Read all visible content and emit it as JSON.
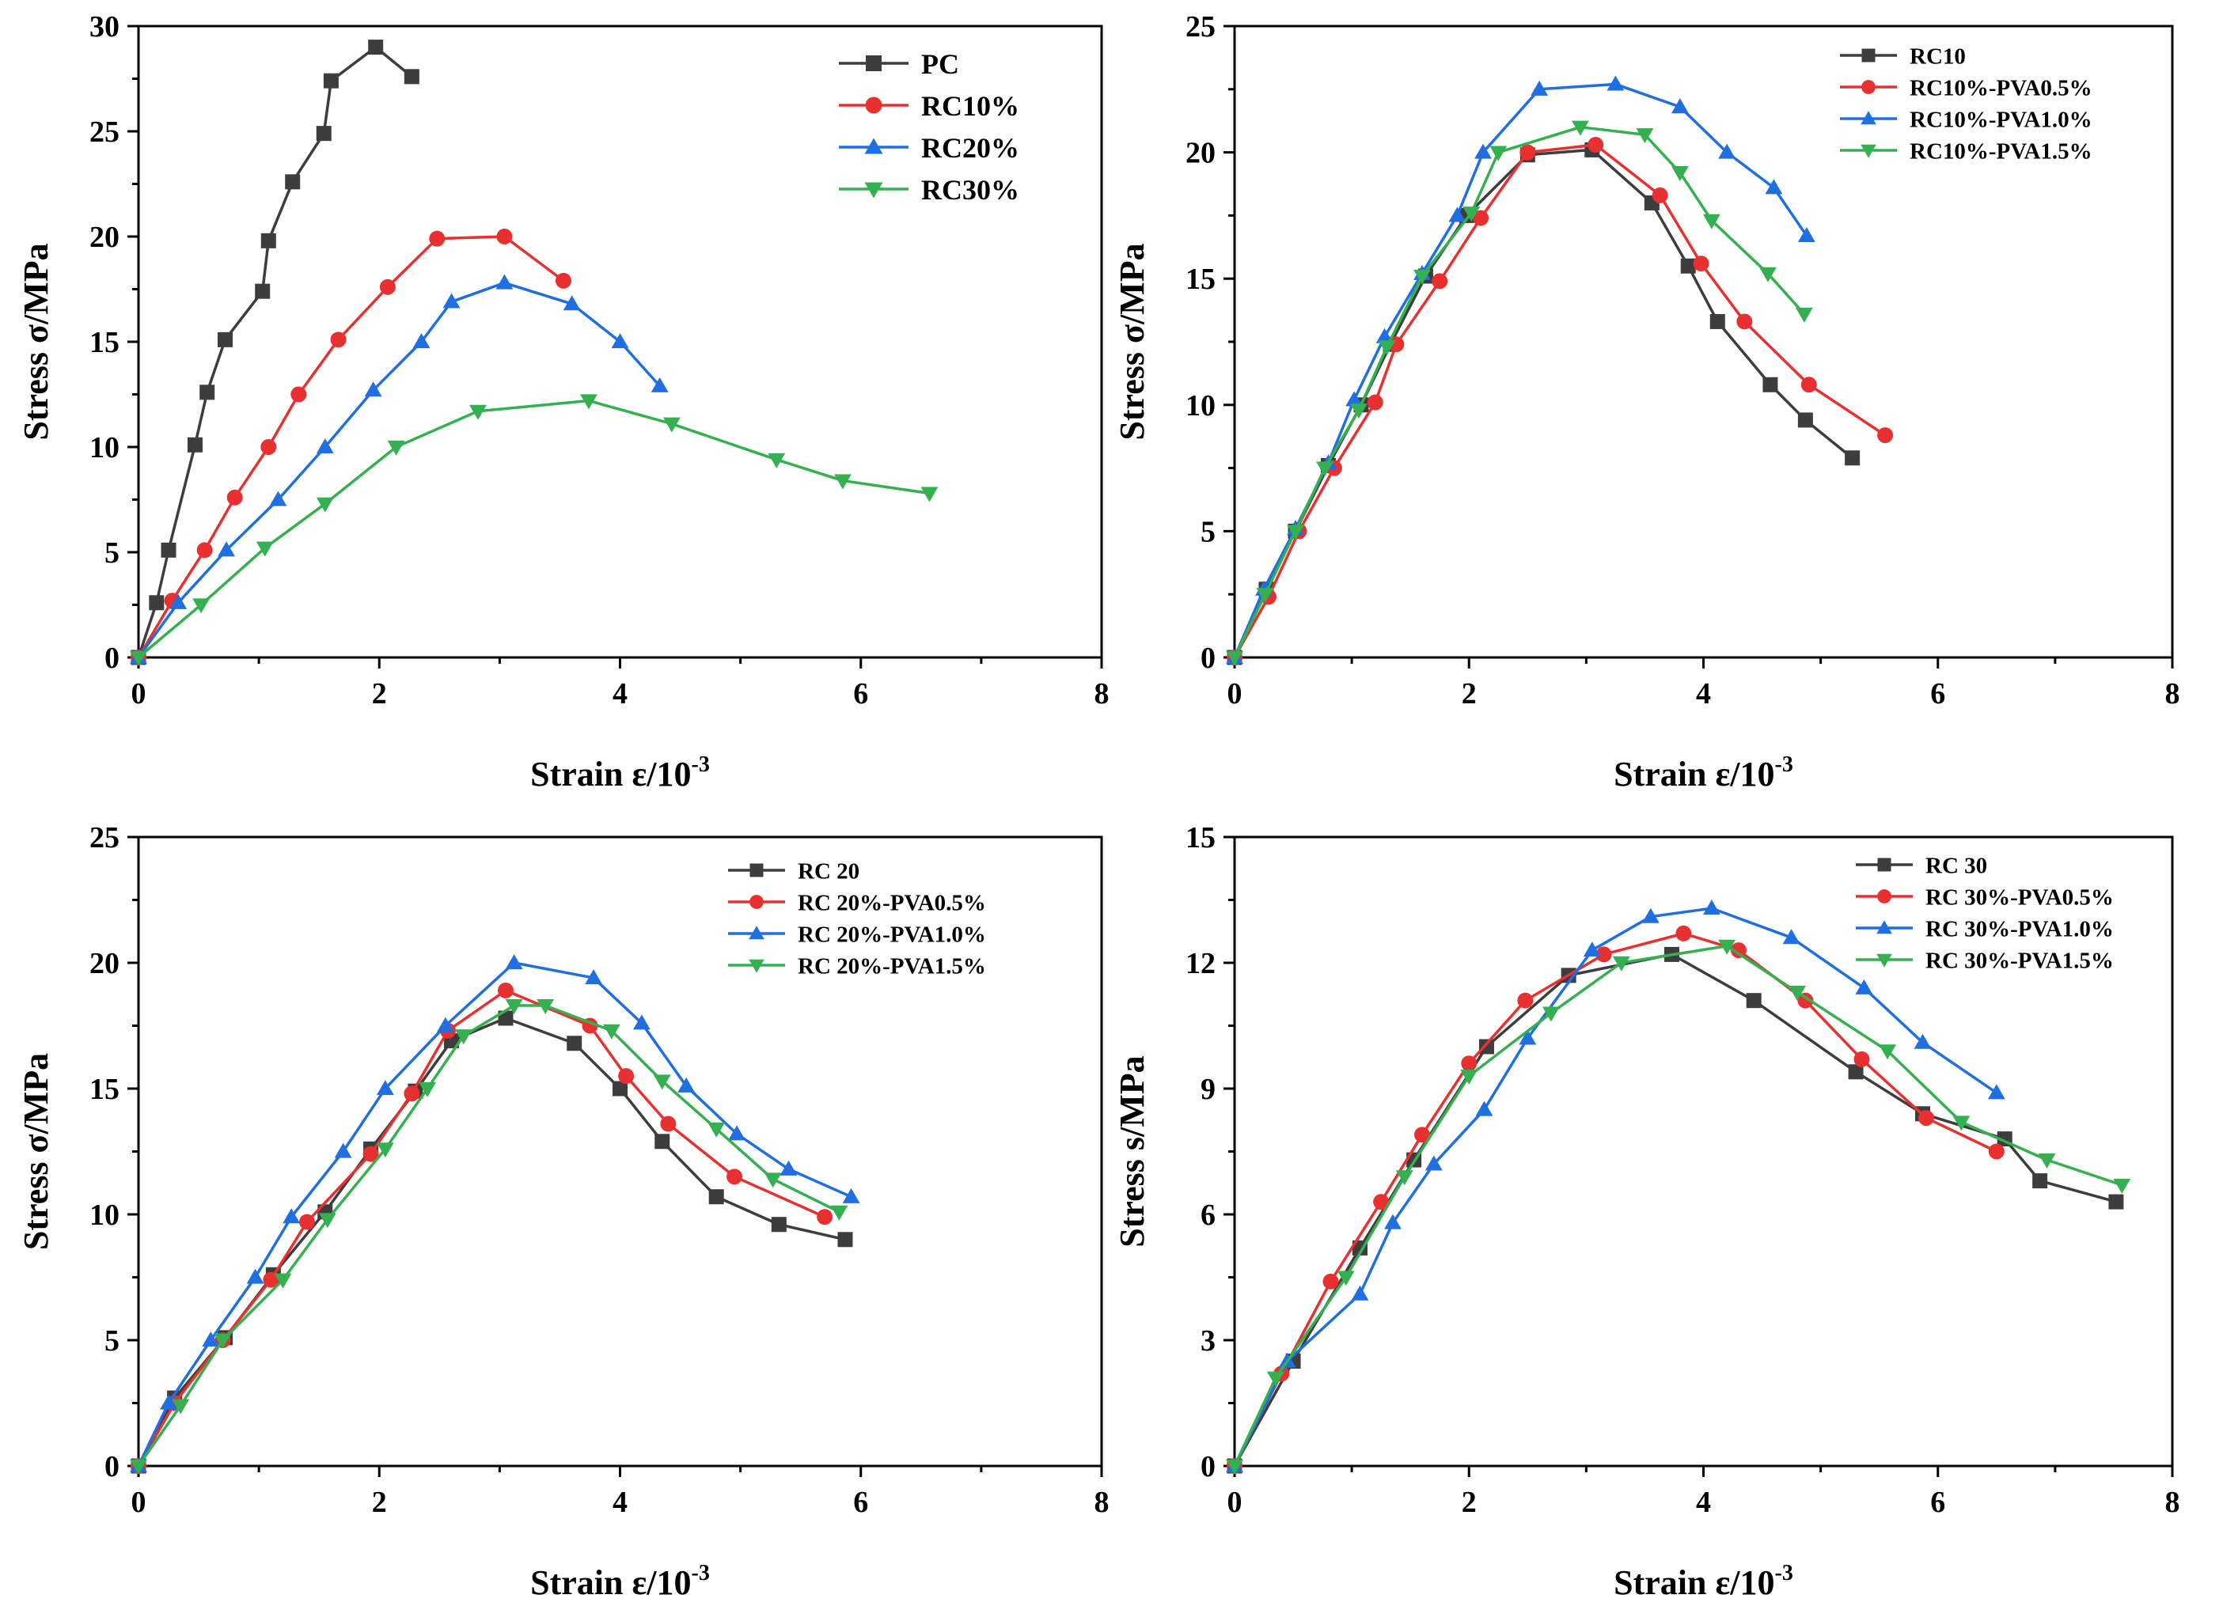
{
  "chart_data": [
    {
      "type": "line",
      "id": "panel-a",
      "xlabel_main": "Strain ε/10",
      "xlabel_sup": "-3",
      "ylabel": "Stress σ/MPa",
      "xlim": [
        0,
        8
      ],
      "ylim": [
        0,
        30
      ],
      "xticks": [
        0,
        2,
        4,
        6,
        8
      ],
      "yticks": [
        0,
        5,
        10,
        15,
        20,
        25,
        30
      ],
      "legend_position": "top-right",
      "series": [
        {
          "name": "PC",
          "color": "#3d3d3d",
          "marker": "square",
          "x": [
            0,
            0.15,
            0.25,
            0.47,
            0.57,
            0.72,
            1.03,
            1.08,
            1.28,
            1.54,
            1.6,
            1.97,
            2.27
          ],
          "y": [
            0,
            2.6,
            5.1,
            10.1,
            12.6,
            15.1,
            17.4,
            19.8,
            22.6,
            24.9,
            27.4,
            29.0,
            27.6
          ]
        },
        {
          "name": "RC10%",
          "color": "#e83030",
          "marker": "circle",
          "x": [
            0,
            0.28,
            0.55,
            0.8,
            1.08,
            1.33,
            1.66,
            2.07,
            2.48,
            3.04,
            3.53
          ],
          "y": [
            0,
            2.7,
            5.1,
            7.6,
            10.0,
            12.5,
            15.1,
            17.6,
            19.9,
            20.0,
            17.9
          ]
        },
        {
          "name": "RC20%",
          "color": "#1f6fe0",
          "marker": "triangle-up",
          "x": [
            0,
            0.33,
            0.73,
            1.16,
            1.55,
            1.95,
            2.35,
            2.6,
            3.04,
            3.6,
            4.0,
            4.33
          ],
          "y": [
            0,
            2.6,
            5.1,
            7.5,
            10.0,
            12.7,
            15.0,
            16.9,
            17.8,
            16.8,
            15.0,
            12.9
          ]
        },
        {
          "name": "RC30%",
          "color": "#35b050",
          "marker": "triangle-down",
          "x": [
            0,
            0.52,
            1.05,
            1.55,
            2.14,
            2.82,
            3.74,
            4.43,
            5.3,
            5.85,
            6.57
          ],
          "y": [
            0,
            2.5,
            5.2,
            7.3,
            10.0,
            11.7,
            12.2,
            11.1,
            9.4,
            8.4,
            7.8
          ]
        }
      ]
    },
    {
      "type": "line",
      "id": "panel-b",
      "xlabel_main": "Strain ε/10",
      "xlabel_sup": "-3",
      "ylabel": "Stress σ/MPa",
      "xlim": [
        0,
        8
      ],
      "ylim": [
        0,
        25
      ],
      "xticks": [
        0,
        2,
        4,
        6,
        8
      ],
      "yticks": [
        0,
        5,
        10,
        15,
        20,
        25
      ],
      "legend_position": "top-right",
      "series": [
        {
          "name": "RC10",
          "color": "#3d3d3d",
          "marker": "square",
          "x": [
            0,
            0.27,
            0.52,
            0.8,
            1.08,
            1.33,
            1.63,
            1.98,
            2.5,
            3.05,
            3.56,
            3.87,
            4.12,
            4.57,
            4.87,
            5.27
          ],
          "y": [
            0,
            2.7,
            5.0,
            7.6,
            10.0,
            12.4,
            15.1,
            17.5,
            19.9,
            20.1,
            18.0,
            15.5,
            13.3,
            10.8,
            9.4,
            7.9
          ]
        },
        {
          "name": "RC10%-PVA0.5%",
          "color": "#e83030",
          "marker": "circle",
          "x": [
            0,
            0.29,
            0.55,
            0.85,
            1.2,
            1.38,
            1.75,
            2.1,
            2.5,
            3.08,
            3.63,
            3.98,
            4.35,
            4.9,
            5.55
          ],
          "y": [
            0,
            2.4,
            5.0,
            7.5,
            10.1,
            12.4,
            14.9,
            17.4,
            20.0,
            20.3,
            18.3,
            15.6,
            13.3,
            10.8,
            8.8
          ]
        },
        {
          "name": "RC10%-PVA1.0%",
          "color": "#1f6fe0",
          "marker": "triangle-up",
          "x": [
            0,
            0.25,
            0.52,
            0.8,
            1.02,
            1.28,
            1.6,
            1.9,
            2.12,
            2.6,
            3.25,
            3.8,
            4.2,
            4.6,
            4.88
          ],
          "y": [
            0,
            2.7,
            5.1,
            7.7,
            10.2,
            12.7,
            15.2,
            17.5,
            20.0,
            22.5,
            22.7,
            21.8,
            20.0,
            18.6,
            16.7
          ]
        },
        {
          "name": "RC10%-PVA1.5%",
          "color": "#35b050",
          "marker": "triangle-down",
          "x": [
            0,
            0.26,
            0.52,
            0.77,
            1.06,
            1.3,
            1.6,
            2.02,
            2.25,
            2.95,
            3.5,
            3.8,
            4.07,
            4.55,
            4.86
          ],
          "y": [
            0,
            2.5,
            5.0,
            7.5,
            9.8,
            12.3,
            15.1,
            17.6,
            20.0,
            21.0,
            20.7,
            19.2,
            17.3,
            15.2,
            13.6
          ]
        }
      ]
    },
    {
      "type": "line",
      "id": "panel-c",
      "xlabel_main": "Strain ε/10",
      "xlabel_sup": "-3",
      "ylabel": "Stress σ/MPa",
      "xlim": [
        0,
        8
      ],
      "ylim": [
        0,
        25
      ],
      "xticks": [
        0,
        2,
        4,
        6,
        8
      ],
      "yticks": [
        0,
        5,
        10,
        15,
        20,
        25
      ],
      "legend_position": "top-right",
      "series": [
        {
          "name": "RC 20",
          "color": "#3d3d3d",
          "marker": "square",
          "x": [
            0,
            0.3,
            0.72,
            1.12,
            1.55,
            1.93,
            2.3,
            2.6,
            3.05,
            3.62,
            4.0,
            4.35,
            4.8,
            5.32,
            5.87
          ],
          "y": [
            0,
            2.7,
            5.1,
            7.6,
            10.1,
            12.6,
            14.9,
            16.9,
            17.8,
            16.8,
            15.0,
            12.9,
            10.7,
            9.6,
            9.0
          ]
        },
        {
          "name": "RC 20%-PVA0.5%",
          "color": "#e83030",
          "marker": "circle",
          "x": [
            0,
            0.3,
            0.7,
            1.1,
            1.4,
            1.93,
            2.27,
            2.57,
            3.05,
            3.75,
            4.05,
            4.4,
            4.95,
            5.7
          ],
          "y": [
            0,
            2.5,
            5.0,
            7.4,
            9.7,
            12.4,
            14.8,
            17.3,
            18.9,
            17.5,
            15.5,
            13.6,
            11.5,
            9.9
          ]
        },
        {
          "name": "RC 20%-PVA1.0%",
          "color": "#1f6fe0",
          "marker": "triangle-up",
          "x": [
            0,
            0.25,
            0.6,
            0.97,
            1.27,
            1.7,
            2.05,
            2.55,
            3.12,
            3.78,
            4.18,
            4.55,
            4.97,
            5.4,
            5.92
          ],
          "y": [
            0,
            2.5,
            5.0,
            7.5,
            9.9,
            12.5,
            15.0,
            17.5,
            20.0,
            19.4,
            17.6,
            15.1,
            13.2,
            11.8,
            10.7
          ]
        },
        {
          "name": "RC 20%-PVA1.5%",
          "color": "#35b050",
          "marker": "triangle-down",
          "x": [
            0,
            0.35,
            0.7,
            1.2,
            1.57,
            2.05,
            2.4,
            2.7,
            3.12,
            3.38,
            3.93,
            4.35,
            4.8,
            5.27,
            5.82
          ],
          "y": [
            0,
            2.4,
            5.0,
            7.4,
            9.8,
            12.6,
            15.0,
            17.1,
            18.3,
            18.3,
            17.3,
            15.3,
            13.4,
            11.4,
            10.1
          ]
        }
      ]
    },
    {
      "type": "line",
      "id": "panel-d",
      "xlabel_main": "Strain ε/10",
      "xlabel_sup": "-3",
      "ylabel": "Stress s/MPa",
      "xlim": [
        0,
        8
      ],
      "ylim": [
        0,
        15
      ],
      "xticks": [
        0,
        2,
        4,
        6,
        8
      ],
      "yticks": [
        0,
        3,
        6,
        9,
        12,
        15
      ],
      "legend_position": "top-right",
      "series": [
        {
          "name": "RC 30",
          "color": "#3d3d3d",
          "marker": "square",
          "x": [
            0,
            0.5,
            1.07,
            1.53,
            2.15,
            2.85,
            3.73,
            4.43,
            5.3,
            5.87,
            6.57,
            6.87,
            7.52
          ],
          "y": [
            0,
            2.5,
            5.2,
            7.3,
            10.0,
            11.7,
            12.2,
            11.1,
            9.4,
            8.4,
            7.8,
            6.8,
            6.3
          ]
        },
        {
          "name": "RC 30%-PVA0.5%",
          "color": "#e83030",
          "marker": "circle",
          "x": [
            0,
            0.4,
            0.82,
            1.25,
            1.6,
            2.0,
            2.48,
            3.15,
            3.83,
            4.3,
            4.87,
            5.35,
            5.9,
            6.5
          ],
          "y": [
            0,
            2.2,
            4.4,
            6.3,
            7.9,
            9.6,
            11.1,
            12.2,
            12.7,
            12.3,
            11.1,
            9.7,
            8.3,
            7.5
          ]
        },
        {
          "name": "RC 30%-PVA1.0%",
          "color": "#1f6fe0",
          "marker": "triangle-up",
          "x": [
            0,
            0.45,
            1.07,
            1.35,
            1.7,
            2.13,
            2.5,
            3.05,
            3.55,
            4.07,
            4.75,
            5.37,
            5.87,
            6.5
          ],
          "y": [
            0,
            2.5,
            4.1,
            5.8,
            7.2,
            8.5,
            10.2,
            12.3,
            13.1,
            13.3,
            12.6,
            11.4,
            10.1,
            8.9
          ]
        },
        {
          "name": "RC 30%-PVA1.5%",
          "color": "#35b050",
          "marker": "triangle-down",
          "x": [
            0,
            0.35,
            0.95,
            1.45,
            2.0,
            2.7,
            3.3,
            4.2,
            4.8,
            5.57,
            6.2,
            6.93,
            7.57
          ],
          "y": [
            0,
            2.1,
            4.5,
            6.9,
            9.3,
            10.8,
            12.0,
            12.4,
            11.3,
            9.9,
            8.2,
            7.3,
            6.7
          ]
        }
      ]
    }
  ]
}
